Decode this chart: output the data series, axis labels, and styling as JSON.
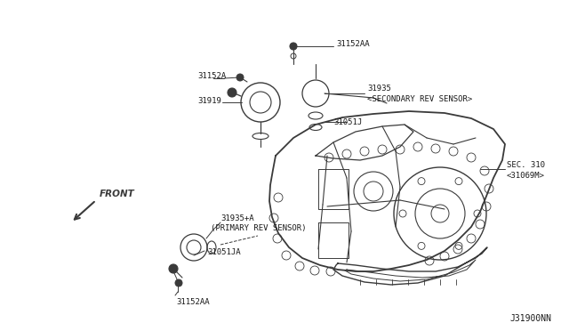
{
  "bg_color": "#ffffff",
  "diagram_color": "#3a3a3a",
  "fig_width": 6.4,
  "fig_height": 3.72,
  "dpi": 100,
  "watermark": "J31900NN",
  "xlim": [
    0,
    640
  ],
  "ylim": [
    0,
    372
  ]
}
